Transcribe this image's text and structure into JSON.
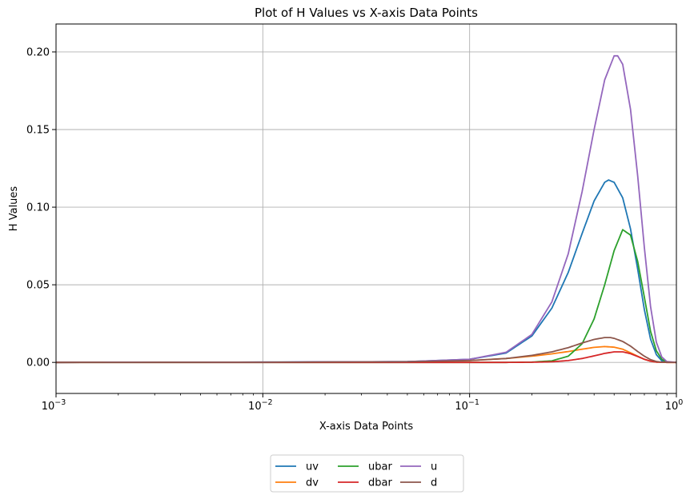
{
  "chart_data": {
    "type": "line",
    "title": "Plot of H Values vs X-axis Data Points",
    "xlabel": "X-axis Data Points",
    "ylabel": "H Values",
    "xscale": "log",
    "xlim": [
      0.001,
      1
    ],
    "ylim": [
      -0.02,
      0.218
    ],
    "grid": true,
    "legend_position": "below-center",
    "legend_columns": 3,
    "x_ticks": [
      {
        "value": 0.001,
        "base": "10",
        "exp": "−3"
      },
      {
        "value": 0.01,
        "base": "10",
        "exp": "−2"
      },
      {
        "value": 0.1,
        "base": "10",
        "exp": "−1"
      },
      {
        "value": 1,
        "base": "10",
        "exp": "0"
      }
    ],
    "y_ticks": [
      {
        "value": 0.0,
        "label": "0.00"
      },
      {
        "value": 0.05,
        "label": "0.05"
      },
      {
        "value": 0.1,
        "label": "0.10"
      },
      {
        "value": 0.15,
        "label": "0.15"
      },
      {
        "value": 0.2,
        "label": "0.20"
      }
    ],
    "series": [
      {
        "name": "uv",
        "color": "#1f77b4",
        "points": [
          [
            0.001,
            0
          ],
          [
            0.01,
            0.0002
          ],
          [
            0.05,
            0.0005
          ],
          [
            0.1,
            0.002
          ],
          [
            0.15,
            0.006
          ],
          [
            0.2,
            0.017
          ],
          [
            0.25,
            0.035
          ],
          [
            0.3,
            0.058
          ],
          [
            0.35,
            0.083
          ],
          [
            0.4,
            0.104
          ],
          [
            0.45,
            0.116
          ],
          [
            0.47,
            0.1175
          ],
          [
            0.5,
            0.116
          ],
          [
            0.55,
            0.106
          ],
          [
            0.6,
            0.086
          ],
          [
            0.65,
            0.06
          ],
          [
            0.7,
            0.034
          ],
          [
            0.75,
            0.015
          ],
          [
            0.8,
            0.005
          ],
          [
            0.85,
            0.001
          ],
          [
            0.9,
            0.0002
          ],
          [
            1,
            0
          ]
        ]
      },
      {
        "name": "dv",
        "color": "#ff7f0e",
        "points": [
          [
            0.001,
            0
          ],
          [
            0.01,
            0.0001
          ],
          [
            0.05,
            0.0003
          ],
          [
            0.1,
            0.0012
          ],
          [
            0.15,
            0.0025
          ],
          [
            0.2,
            0.004
          ],
          [
            0.25,
            0.0055
          ],
          [
            0.3,
            0.007
          ],
          [
            0.35,
            0.0085
          ],
          [
            0.4,
            0.0097
          ],
          [
            0.45,
            0.0102
          ],
          [
            0.5,
            0.0098
          ],
          [
            0.55,
            0.0085
          ],
          [
            0.6,
            0.0062
          ],
          [
            0.65,
            0.004
          ],
          [
            0.7,
            0.002
          ],
          [
            0.75,
            0.0008
          ],
          [
            0.8,
            0.0002
          ],
          [
            0.9,
            0
          ],
          [
            1,
            0
          ]
        ]
      },
      {
        "name": "ubar",
        "color": "#2ca02c",
        "points": [
          [
            0.001,
            0
          ],
          [
            0.1,
            0
          ],
          [
            0.15,
            0
          ],
          [
            0.2,
            0.0002
          ],
          [
            0.25,
            0.001
          ],
          [
            0.3,
            0.004
          ],
          [
            0.35,
            0.012
          ],
          [
            0.4,
            0.028
          ],
          [
            0.45,
            0.05
          ],
          [
            0.5,
            0.072
          ],
          [
            0.55,
            0.0855
          ],
          [
            0.6,
            0.082
          ],
          [
            0.65,
            0.065
          ],
          [
            0.7,
            0.042
          ],
          [
            0.75,
            0.02
          ],
          [
            0.8,
            0.0075
          ],
          [
            0.85,
            0.002
          ],
          [
            0.9,
            0.0003
          ],
          [
            1,
            0
          ]
        ]
      },
      {
        "name": "dbar",
        "color": "#d62728",
        "points": [
          [
            0.001,
            0
          ],
          [
            0.15,
            0
          ],
          [
            0.2,
            0.0001
          ],
          [
            0.25,
            0.0004
          ],
          [
            0.3,
            0.0012
          ],
          [
            0.35,
            0.0025
          ],
          [
            0.4,
            0.0042
          ],
          [
            0.45,
            0.0058
          ],
          [
            0.5,
            0.0068
          ],
          [
            0.55,
            0.0068
          ],
          [
            0.6,
            0.0056
          ],
          [
            0.65,
            0.0038
          ],
          [
            0.7,
            0.002
          ],
          [
            0.75,
            0.0008
          ],
          [
            0.8,
            0.0002
          ],
          [
            0.9,
            0
          ],
          [
            1,
            0
          ]
        ]
      },
      {
        "name": "u",
        "color": "#9467bd",
        "points": [
          [
            0.001,
            0
          ],
          [
            0.01,
            0.0002
          ],
          [
            0.05,
            0.0005
          ],
          [
            0.1,
            0.002
          ],
          [
            0.15,
            0.0065
          ],
          [
            0.2,
            0.018
          ],
          [
            0.25,
            0.039
          ],
          [
            0.3,
            0.07
          ],
          [
            0.35,
            0.11
          ],
          [
            0.4,
            0.15
          ],
          [
            0.45,
            0.182
          ],
          [
            0.5,
            0.1975
          ],
          [
            0.52,
            0.1975
          ],
          [
            0.55,
            0.192
          ],
          [
            0.6,
            0.163
          ],
          [
            0.65,
            0.12
          ],
          [
            0.7,
            0.074
          ],
          [
            0.75,
            0.036
          ],
          [
            0.8,
            0.013
          ],
          [
            0.85,
            0.0035
          ],
          [
            0.9,
            0.0005
          ],
          [
            1,
            0
          ]
        ]
      },
      {
        "name": "d",
        "color": "#8c564b",
        "points": [
          [
            0.001,
            0
          ],
          [
            0.01,
            0.0001
          ],
          [
            0.05,
            0.0004
          ],
          [
            0.1,
            0.0012
          ],
          [
            0.15,
            0.0025
          ],
          [
            0.2,
            0.0045
          ],
          [
            0.25,
            0.0068
          ],
          [
            0.3,
            0.0095
          ],
          [
            0.35,
            0.0125
          ],
          [
            0.4,
            0.0148
          ],
          [
            0.45,
            0.016
          ],
          [
            0.48,
            0.016
          ],
          [
            0.5,
            0.0155
          ],
          [
            0.55,
            0.0135
          ],
          [
            0.6,
            0.0105
          ],
          [
            0.65,
            0.007
          ],
          [
            0.7,
            0.004
          ],
          [
            0.75,
            0.0018
          ],
          [
            0.8,
            0.0006
          ],
          [
            0.85,
            0.0001
          ],
          [
            1,
            0
          ]
        ]
      }
    ]
  }
}
